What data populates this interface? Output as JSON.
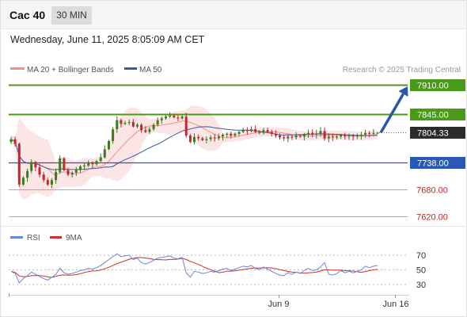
{
  "header": {
    "instrument": "Cac 40",
    "timeframe": "30 MIN"
  },
  "timestamp": "Wednesday, June 11, 2025 8:05:09 AM CET",
  "legend": {
    "ma20": "MA 20 + Bollinger Bands",
    "ma50": "MA 50",
    "credit": "Research © 2025 Trading Central"
  },
  "rsi_legend": {
    "rsi": "RSI",
    "ma": "9MA"
  },
  "colors": {
    "bull": "#3a7d1f",
    "bear": "#c1272d",
    "green_level": "#4a9a1a",
    "blue_level": "#2a58b6",
    "red_level": "#e98f8f",
    "ma20": "#f0908a",
    "ma50": "#3a5ba0",
    "band": "#fbe1e0",
    "arrow": "#2a58a8",
    "rsi": "#6a86d8",
    "rsi_ma": "#d42a2a"
  },
  "chart_data": {
    "type": "candlestick",
    "x_labels": [
      "Jun 9",
      "Jun 16"
    ],
    "current_price": 7804.33,
    "levels": [
      {
        "value": 7910.0,
        "label": "7910.00",
        "style": "green-filled"
      },
      {
        "value": 7845.0,
        "label": "7845.00",
        "style": "green-filled"
      },
      {
        "value": 7804.33,
        "label": "7804.33",
        "style": "current"
      },
      {
        "value": 7738.0,
        "label": "7738.00",
        "style": "blue-filled"
      },
      {
        "value": 7680.0,
        "label": "7680.00",
        "style": "red-text"
      },
      {
        "value": 7620.0,
        "label": "7620.00",
        "style": "red-text"
      }
    ],
    "price_range": [
      7600,
      7930
    ],
    "closes": [
      7790,
      7780,
      7690,
      7705,
      7720,
      7740,
      7728,
      7712,
      7700,
      7690,
      7700,
      7718,
      7748,
      7722,
      7712,
      7716,
      7722,
      7730,
      7732,
      7738,
      7735,
      7742,
      7750,
      7768,
      7786,
      7812,
      7832,
      7824,
      7826,
      7828,
      7818,
      7822,
      7810,
      7806,
      7812,
      7822,
      7832,
      7836,
      7840,
      7842,
      7838,
      7836,
      7840,
      7798,
      7784,
      7795,
      7792,
      7788,
      7790,
      7794,
      7792,
      7796,
      7800,
      7802,
      7798,
      7802,
      7806,
      7810,
      7808,
      7812,
      7806,
      7804,
      7810,
      7806,
      7802,
      7798,
      7794,
      7792,
      7796,
      7794,
      7798,
      7796,
      7800,
      7804,
      7800,
      7802,
      7808,
      7792,
      7796,
      7794,
      7796,
      7800,
      7796,
      7798,
      7796,
      7798,
      7800,
      7804,
      7802,
      7804,
      7804.33
    ],
    "ma20_label": "MA 20",
    "ma50_label": "MA 50",
    "rsi": {
      "levels": [
        "70",
        "50",
        "30"
      ],
      "range": [
        20,
        80
      ],
      "values": [
        48,
        45,
        32,
        38,
        42,
        47,
        44,
        41,
        38,
        36,
        40,
        44,
        52,
        46,
        44,
        45,
        47,
        49,
        50,
        52,
        51,
        53,
        56,
        60,
        64,
        68,
        72,
        68,
        69,
        70,
        64,
        66,
        60,
        58,
        60,
        63,
        66,
        67,
        68,
        69,
        66,
        65,
        67,
        46,
        40,
        48,
        47,
        45,
        46,
        48,
        47,
        49,
        51,
        52,
        49,
        51,
        53,
        55,
        54,
        56,
        52,
        50,
        54,
        51,
        48,
        45,
        43,
        42,
        46,
        44,
        47,
        45,
        49,
        52,
        49,
        50,
        54,
        60,
        44,
        43,
        45,
        49,
        46,
        48,
        46,
        48,
        50,
        55,
        53,
        55,
        56
      ]
    }
  }
}
